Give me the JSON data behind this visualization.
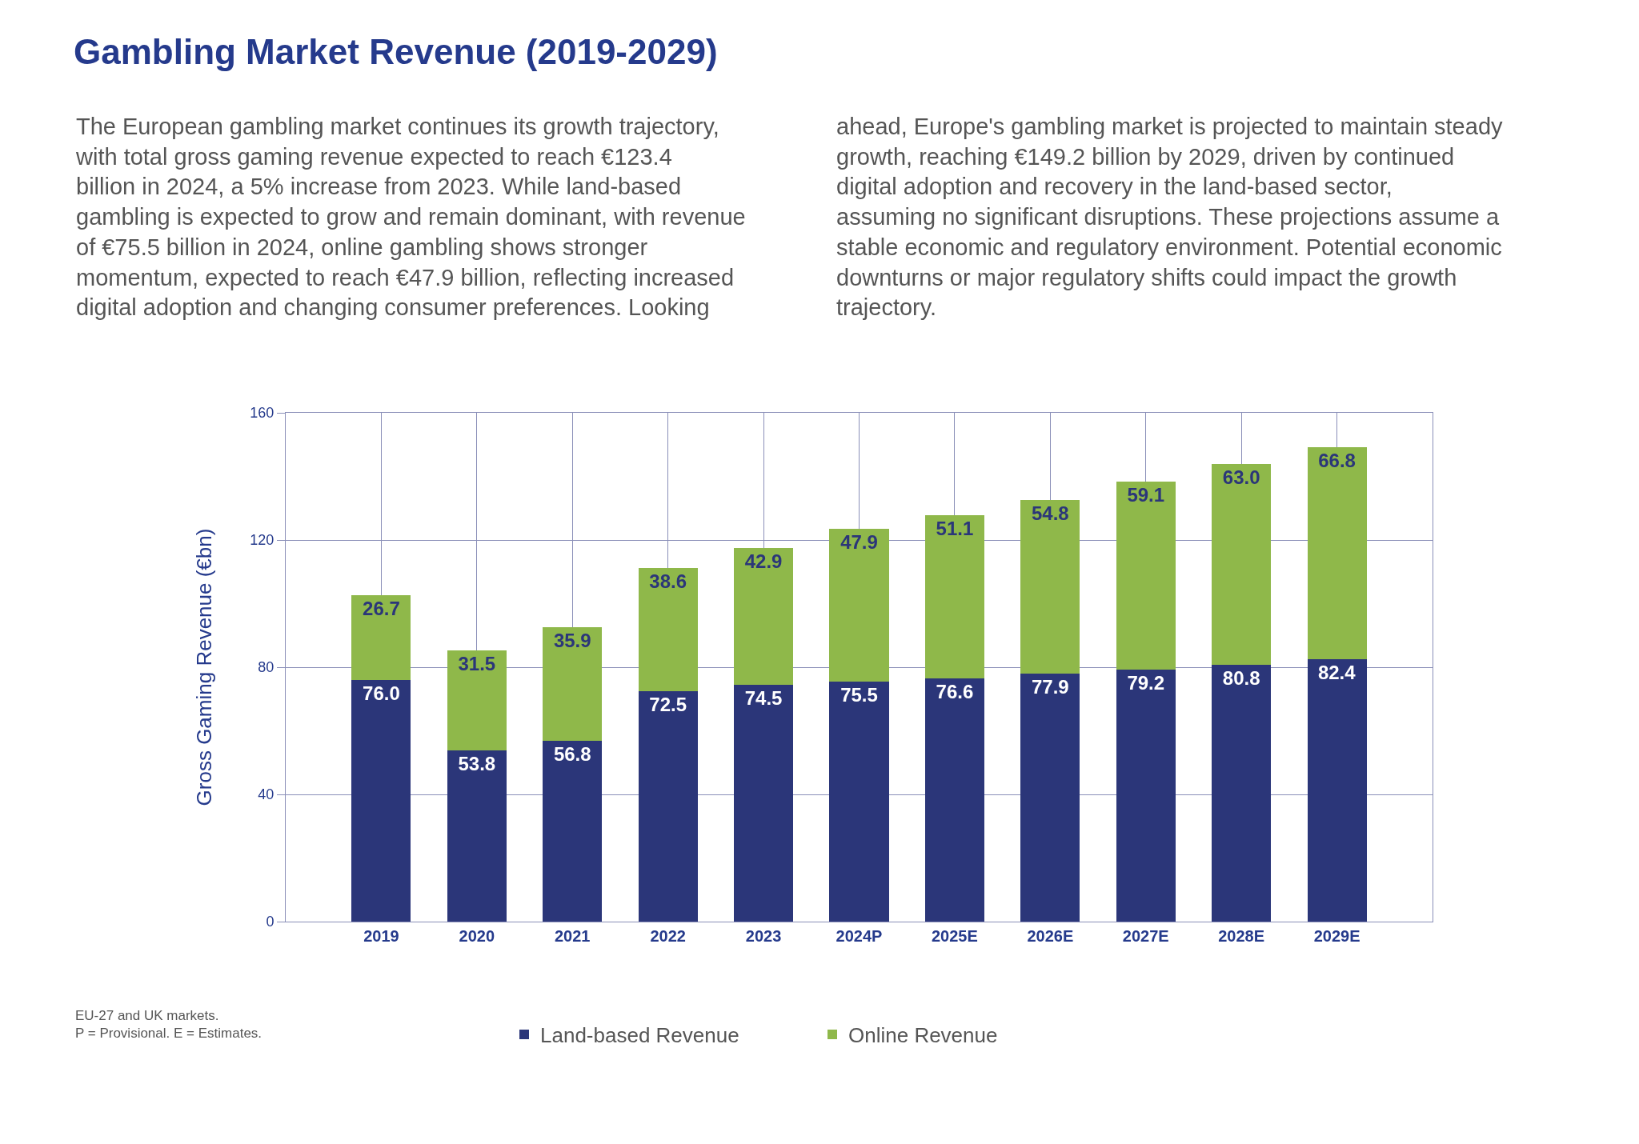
{
  "chart_data": {
    "type": "bar",
    "title": "Gambling Market Revenue (2019-2029)",
    "subtitle": "The European gambling market continues its growth trajectory, with total gross gaming revenue expected to reach €123.4 billion in 2024, a 5% increase from 2023. While land-based gambling is expected to grow and remain dominant, with revenue of €75.5 billion in 2024, online gambling shows stronger momentum, expected to reach €47.9 billion, reflecting increased digital adoption and changing consumer preferences. Looking ahead, Europe's gambling market is projected to maintain steady growth, reaching €149.2 billion by 2029, driven by continued digital adoption and recovery in the land-based sector, assuming no significant disruptions. These projections assume a stable economic and regulatory environment. Potential economic downturns or major regulatory shifts could impact the growth trajectory.",
    "ylabel": "Gross Gaming Revenue (€bn)",
    "categories": [
      "2019",
      "2020",
      "2021",
      "2022",
      "2023",
      "2024P",
      "2025E",
      "2026E",
      "2027E",
      "2028E",
      "2029E"
    ],
    "series": [
      {
        "name": "Land-based Revenue",
        "color": "#2b3679",
        "values": [
          76.0,
          53.8,
          56.8,
          72.5,
          74.5,
          75.5,
          76.6,
          77.9,
          79.2,
          80.8,
          82.4
        ],
        "value_labels": [
          "76.0",
          "53.8",
          "56.8",
          "72.5",
          "74.5",
          "75.5",
          "76.6",
          "77.9",
          "79.2",
          "80.8",
          "82.4"
        ]
      },
      {
        "name": "Online Revenue",
        "color": "#8fb84a",
        "values": [
          26.7,
          31.5,
          35.9,
          38.6,
          42.9,
          47.9,
          51.1,
          54.8,
          59.1,
          63.0,
          66.8
        ],
        "value_labels": [
          "26.7",
          "31.5",
          "35.9",
          "38.6",
          "42.9",
          "47.9",
          "51.1",
          "54.8",
          "59.1",
          "63.0",
          "66.8"
        ]
      }
    ],
    "stacked": true,
    "ylim": [
      0,
      160
    ],
    "yticks": [
      0,
      40,
      80,
      120,
      160
    ],
    "grid": true,
    "legend": "bottom",
    "annotations": [
      "EU-27 and UK markets.",
      "P = Provisional. E = Estimates."
    ]
  }
}
